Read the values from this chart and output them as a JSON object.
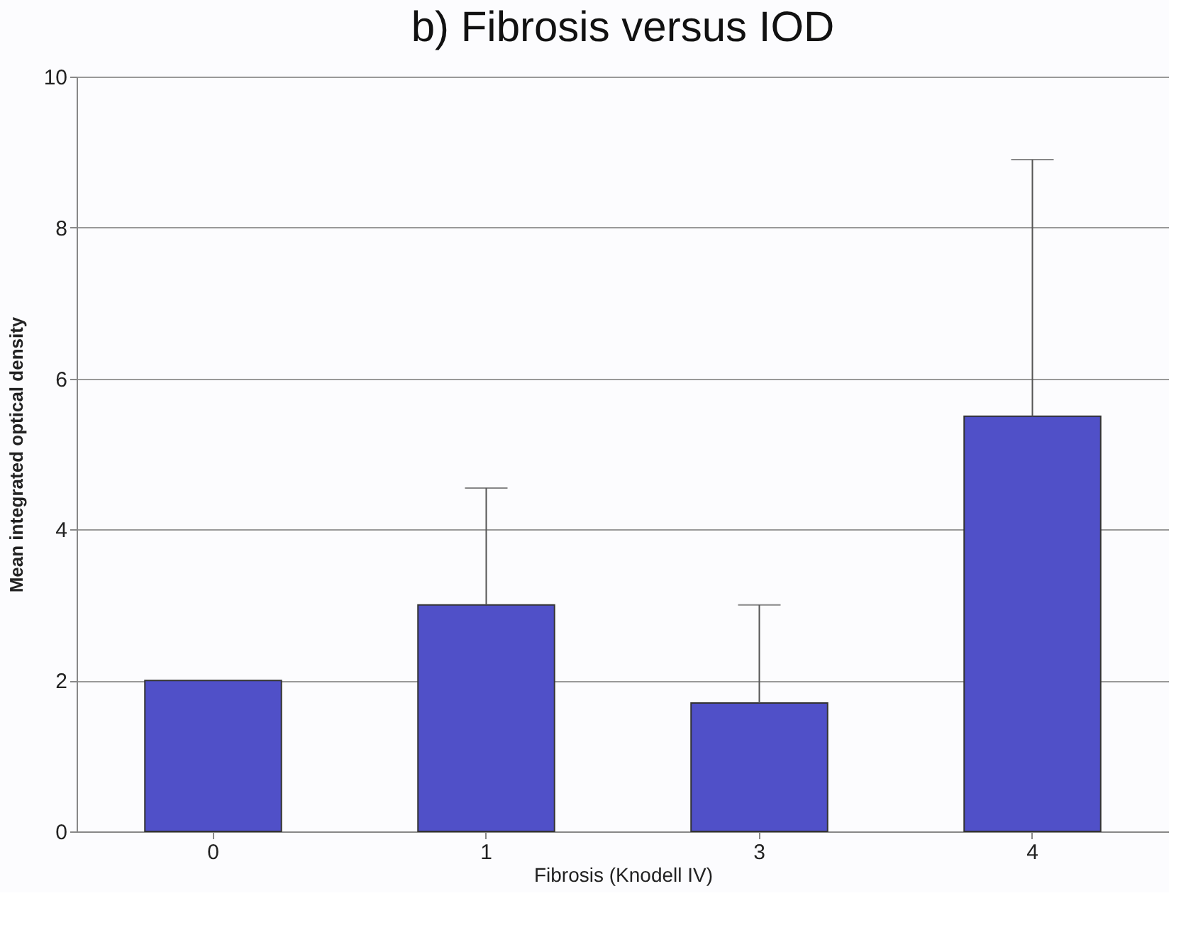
{
  "chart_data": {
    "type": "bar",
    "title": "b) Fibrosis versus IOD",
    "xlabel": "Fibrosis (Knodell IV)",
    "ylabel": "Mean integrated optical density",
    "categories": [
      "0",
      "1",
      "3",
      "4"
    ],
    "values": [
      2.0,
      3.0,
      1.7,
      5.5
    ],
    "errors": [
      null,
      [
        3.0,
        4.55
      ],
      [
        1.7,
        3.0
      ],
      [
        5.5,
        8.9
      ]
    ],
    "color": "#5050c8",
    "ylim": [
      0,
      10
    ],
    "yticks": [
      0,
      2,
      4,
      6,
      8,
      10
    ],
    "grid": "y"
  }
}
